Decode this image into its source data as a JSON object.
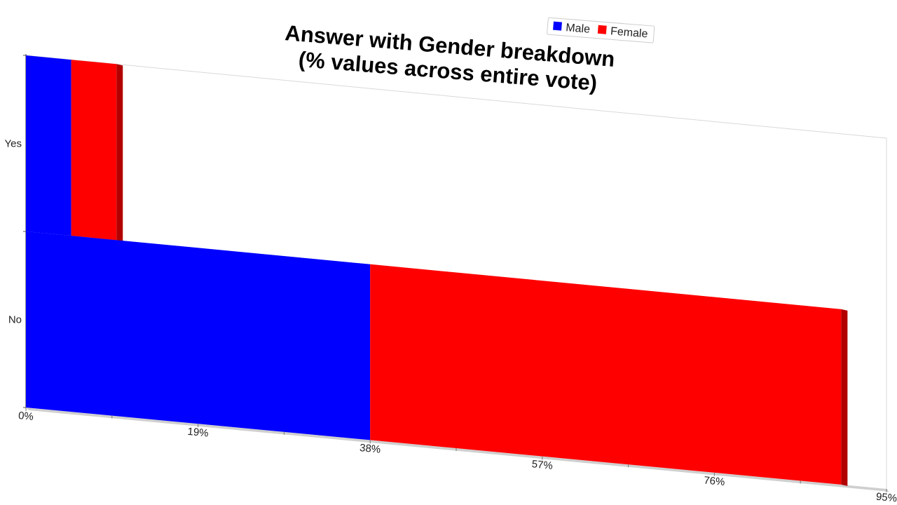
{
  "chart_data": {
    "type": "bar",
    "orientation": "horizontal",
    "stacked": true,
    "style_3d": true,
    "title": "Answer with Gender breakdown",
    "subtitle": "(% values across entire vote)",
    "categories": [
      "Yes",
      "No"
    ],
    "series": [
      {
        "name": "Male",
        "color": "#0000ff",
        "values": [
          5,
          38
        ]
      },
      {
        "name": "Female",
        "color": "#ff0000",
        "values": [
          5,
          52
        ]
      }
    ],
    "xticks": [
      "0%",
      "19%",
      "38%",
      "57%",
      "76%",
      "95%"
    ],
    "xlim": [
      0,
      95
    ],
    "legend_position": "top-right",
    "grid": false
  }
}
